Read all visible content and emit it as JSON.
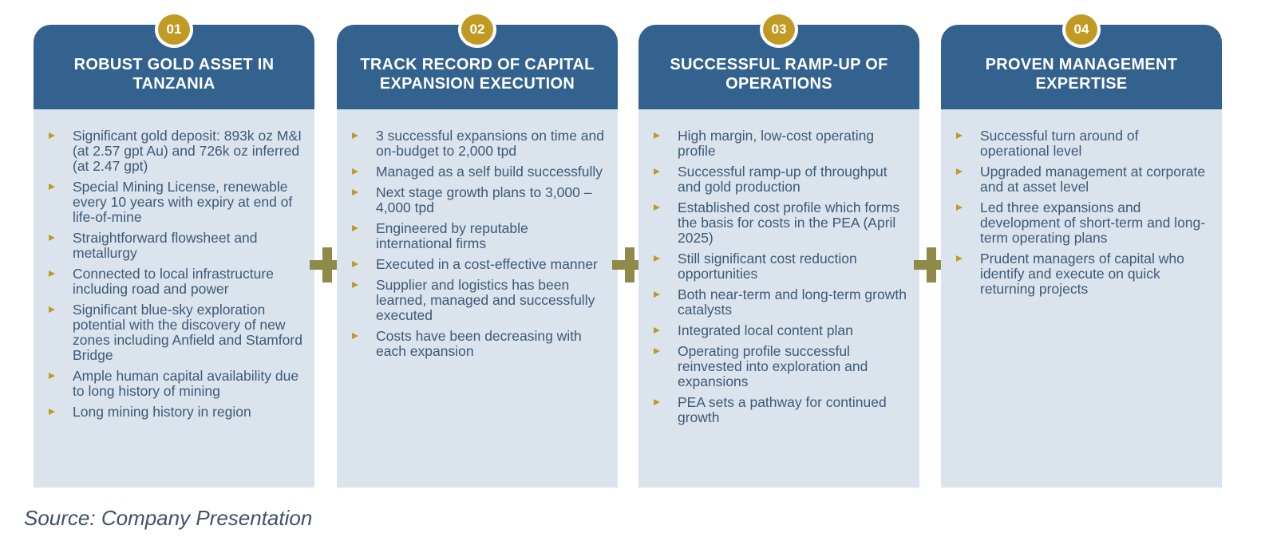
{
  "cards": [
    {
      "number": "01",
      "title": "ROBUST GOLD ASSET IN TANZANIA",
      "bullets": [
        "Significant gold deposit: 893k oz M&I (at 2.57 gpt Au) and 726k oz inferred (at 2.47 gpt)",
        "Special Mining License, renewable every 10 years with expiry at end of life-of-mine",
        "Straightforward flowsheet and metallurgy",
        "Connected to local infrastructure including road and power",
        "Significant blue-sky exploration potential with the discovery of new zones including Anfield and Stamford Bridge",
        "Ample human capital availability due to long history of mining",
        "Long mining history in region"
      ]
    },
    {
      "number": "02",
      "title": "TRACK RECORD OF CAPITAL EXPANSION EXECUTION",
      "bullets": [
        "3 successful expansions on time and on-budget to 2,000 tpd",
        "Managed as a self build successfully",
        "Next stage growth plans to 3,000 – 4,000 tpd",
        "Engineered by reputable international firms",
        "Executed in a cost-effective manner",
        "Supplier and logistics has been learned, managed and successfully executed",
        "Costs have been decreasing with each expansion"
      ]
    },
    {
      "number": "03",
      "title": "SUCCESSFUL RAMP-UP OF OPERATIONS",
      "bullets": [
        "High margin, low-cost operating profile",
        "Successful ramp-up of throughput and gold production",
        "Established cost profile which forms the basis for costs in the PEA (April 2025)",
        "Still significant cost reduction opportunities",
        "Both near-term and long-term growth catalysts",
        "Integrated local content plan",
        "Operating profile successful reinvested into exploration and expansions",
        "PEA sets a pathway for continued growth"
      ]
    },
    {
      "number": "04",
      "title": "PROVEN MANAGEMENT EXPERTISE",
      "bullets": [
        "Successful turn around of operational level",
        "Upgraded management at corporate and at asset level",
        "Led three expansions and development of short-term and long-term operating plans",
        "Prudent managers of capital who identify and execute on quick returning projects"
      ]
    }
  ],
  "source": "Source: Company Presentation",
  "colors": {
    "header": "#33628f",
    "body": "#dbe4ec",
    "badge": "#c19a24",
    "plus": "#8f8a4a",
    "text": "#3c5a79"
  }
}
